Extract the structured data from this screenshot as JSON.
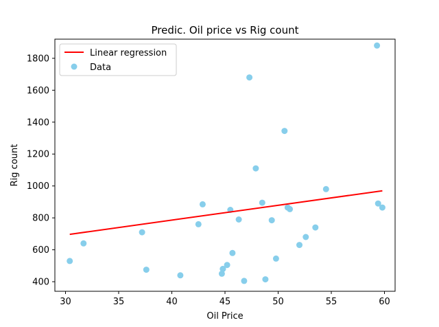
{
  "chart_data": {
    "type": "scatter",
    "title": "Predic. Oil price vs Rig count",
    "xlabel": "Oil Price",
    "ylabel": "Rig count",
    "xlim": [
      29,
      61
    ],
    "ylim": [
      340,
      1920
    ],
    "xticks": [
      30,
      35,
      40,
      45,
      50,
      55,
      60
    ],
    "yticks": [
      400,
      600,
      800,
      1000,
      1200,
      1400,
      1600,
      1800
    ],
    "grid": false,
    "legend": {
      "position": "top-left",
      "entries": [
        "Linear regression",
        "Data"
      ]
    },
    "series": [
      {
        "name": "Data",
        "kind": "scatter",
        "color": "#87ceeb",
        "x": [
          30.4,
          31.7,
          37.2,
          37.6,
          40.8,
          42.5,
          42.9,
          44.7,
          44.8,
          44.8,
          45.2,
          45.5,
          45.7,
          46.3,
          46.8,
          47.3,
          47.9,
          48.5,
          48.8,
          49.4,
          49.8,
          50.6,
          50.9,
          51.1,
          52.0,
          52.6,
          53.5,
          54.5,
          59.3,
          59.4,
          59.8
        ],
        "y": [
          530,
          640,
          710,
          475,
          440,
          760,
          885,
          450,
          480,
          480,
          505,
          850,
          580,
          790,
          405,
          1680,
          1110,
          895,
          415,
          785,
          545,
          1345,
          865,
          855,
          630,
          680,
          740,
          980,
          1880,
          890,
          865
        ]
      },
      {
        "name": "Linear regression",
        "kind": "line",
        "color": "#ff0000",
        "x": [
          30.4,
          59.8
        ],
        "y": [
          697,
          970
        ]
      }
    ]
  }
}
